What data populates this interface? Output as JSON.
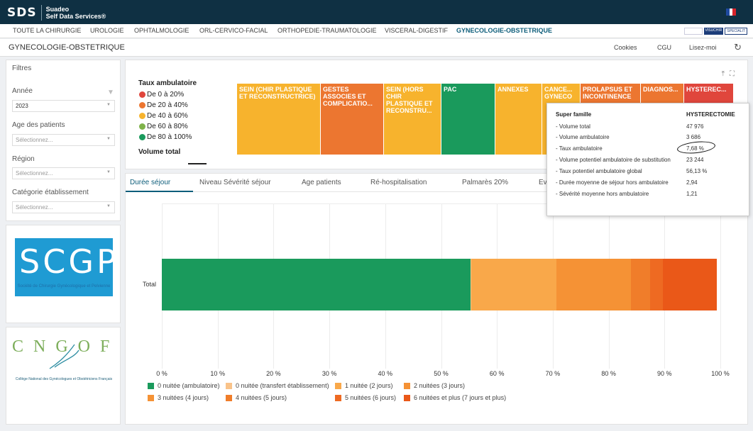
{
  "header": {
    "brand_short": "SDS",
    "brand_name": "Suadeo",
    "brand_sub": "Self Data Services®",
    "flag_colors": [
      "#1f4aa0",
      "#ffffff",
      "#d8232a"
    ]
  },
  "nav": {
    "items": [
      "TOUTE LA CHIRURGIE",
      "UROLOGIE",
      "OPHTALMOLOGIE",
      "ORL-CERVICO-FACIAL",
      "ORTHOPEDIE-TRAUMATOLOGIE",
      "VISCERAL-DIGESTIF",
      "GYNECOLOGIE-OBSTETRIQUE"
    ],
    "active": "GYNECOLOGIE-OBSTETRIQUE",
    "partner_logos": [
      "",
      "VISUCHIR",
      "SPECIALIT"
    ]
  },
  "titlebar": {
    "title": "GYNECOLOGIE-OBSTETRIQUE",
    "cookies": "Cookies",
    "cgu": "CGU",
    "lisez_moi": "Lisez-moi"
  },
  "filters": {
    "title": "Filtres",
    "annee_label": "Année",
    "annee_value": "2023",
    "age_label": "Age des patients",
    "age_placeholder": "Sélectionnez...",
    "region_label": "Région",
    "region_placeholder": "Sélectionnez...",
    "categorie_label": "Catégorie établissement",
    "categorie_placeholder": "Sélectionnez..."
  },
  "logos": {
    "scgp_letters": "SCGP",
    "scgp_caption": "Société de Chirurgie Gynécologique et Pelvienne",
    "cngof_letters": "CNGOF",
    "cngof_caption": "Collège National des Gynécologues et Obstétriciens Français"
  },
  "treemap": {
    "legend_title": "Taux ambulatoire",
    "legend": [
      {
        "label": "De 0 à 20%",
        "color": "#e0463c"
      },
      {
        "label": "De 20 à 40%",
        "color": "#ec7630"
      },
      {
        "label": "De 40 à 60%",
        "color": "#f7b32d"
      },
      {
        "label": "De 60 à 80%",
        "color": "#7fb24a"
      },
      {
        "label": "De 80 à 100%",
        "color": "#1a9a5c"
      }
    ],
    "volume_title": "Volume total",
    "cells": [
      {
        "label": "SEIN (CHIR PLASTIQUE ET RECONSTRUCTRICE)",
        "color": "#f7b32d"
      },
      {
        "label": "GESTES ASSOCIES ET COMPLICATIO...",
        "color": "#ec7630"
      },
      {
        "label": "SEIN (HORS CHIR PLASTIQUE ET RECONSTRU...",
        "color": "#f7b32d"
      },
      {
        "label": "PAC",
        "color": "#1a9a5c"
      },
      {
        "label": "ANNEXES",
        "color": "#f7b32d"
      },
      {
        "label": "CANCE... GYNECO",
        "color": "#f7b32d"
      },
      {
        "label": "PROLAPSUS ET INCONTINENCE",
        "color": "#ec7630"
      },
      {
        "label": "DIAGNOS...",
        "color": "#ec7630"
      },
      {
        "label": "HYSTEREC...",
        "color": "#e0463c"
      }
    ]
  },
  "tabs": [
    "Durée séjour",
    "Niveau Sévérité séjour",
    "Age patients",
    "Ré-hospitalisation",
    "Palmarès 20%",
    "Ev"
  ],
  "tooltip": {
    "head_label": "Super famille",
    "head_value": "HYSTERECTOMIE",
    "rows": [
      {
        "label": "- Volume total",
        "value": "47 976"
      },
      {
        "label": "- Volume ambulatoire",
        "value": "3 686"
      },
      {
        "label": "- Taux ambulatoire",
        "value": "7,68 %"
      },
      {
        "label": "- Volume potentiel ambulatoire de substitution",
        "value": "23 244"
      },
      {
        "label": "- Taux potentiel ambulatoire global",
        "value": "56,13 %"
      },
      {
        "label": "- Durée moyenne de séjour hors ambulatoire",
        "value": "2,94"
      },
      {
        "label": "- Sévérité moyenne hors ambulatoire",
        "value": "1,21"
      }
    ]
  },
  "chart_data": {
    "type": "bar",
    "orientation": "horizontal",
    "stacked": true,
    "categories": [
      "Total"
    ],
    "xlim": [
      0,
      100
    ],
    "x_ticks": [
      "0 %",
      "10 %",
      "20 %",
      "30 %",
      "40 %",
      "50 %",
      "60 %",
      "70 %",
      "80 %",
      "90 %",
      "100 %"
    ],
    "grid": true,
    "legend_position": "bottom",
    "series": [
      {
        "name": "0 nuitée (ambulatoire)",
        "color": "#1a9a5c",
        "values": [
          55.3
        ]
      },
      {
        "name": "0 nuitée (transfert établissement)",
        "color": "#f9c38a",
        "values": [
          0.1
        ]
      },
      {
        "name": "1 nuitée (2 jours)",
        "color": "#f9a84a",
        "values": [
          15.2
        ]
      },
      {
        "name": "2 nuitées (3 jours)",
        "color": "#f59235",
        "values": [
          8.4
        ]
      },
      {
        "name": "3 nuitées (4 jours)",
        "color": "#f59235",
        "values": [
          5.0
        ]
      },
      {
        "name": "4 nuitées (5 jours)",
        "color": "#f07d2a",
        "values": [
          3.4
        ]
      },
      {
        "name": "5 nuitées (6 jours)",
        "color": "#ee6a22",
        "values": [
          2.3
        ]
      },
      {
        "name": "6 nuitées et plus (7 jours et plus)",
        "color": "#ea5818",
        "values": [
          9.7
        ]
      }
    ]
  }
}
